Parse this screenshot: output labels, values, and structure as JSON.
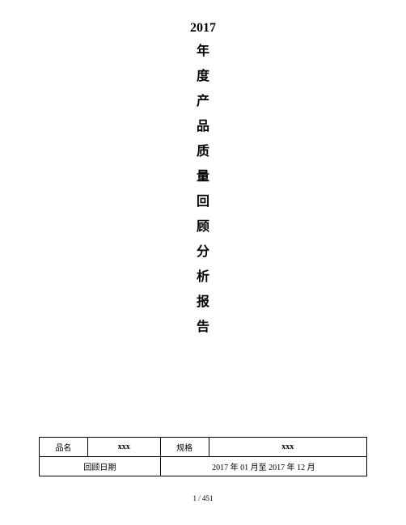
{
  "title": {
    "year": "2017",
    "chars": [
      "年",
      "度",
      "产",
      "品",
      "质",
      "量",
      "回",
      "顾",
      "分",
      "析",
      "报",
      "告"
    ]
  },
  "table": {
    "row1": {
      "label1": "品名",
      "value1": "xxx",
      "label2": "规格",
      "value2": "xxx"
    },
    "row2": {
      "label": "回顾日期",
      "value": "2017 年 01 月至 2017 年 12 月"
    }
  },
  "page_number": "1 / 451"
}
